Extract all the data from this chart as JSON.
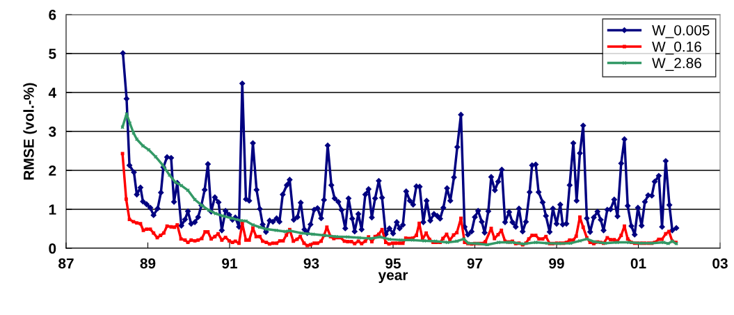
{
  "chart_data": {
    "type": "line",
    "xlabel": "year",
    "ylabel": "RMSE (vol.-%)",
    "xlim": [
      1987,
      2003
    ],
    "xticks": [
      {
        "value": 1987,
        "label": "87"
      },
      {
        "value": 1989,
        "label": "89"
      },
      {
        "value": 1991,
        "label": "91"
      },
      {
        "value": 1993,
        "label": "93"
      },
      {
        "value": 1995,
        "label": "95"
      },
      {
        "value": 1997,
        "label": "97"
      },
      {
        "value": 1999,
        "label": "99"
      },
      {
        "value": 2001,
        "label": "01"
      },
      {
        "value": 2003,
        "label": "03"
      }
    ],
    "ylim": [
      0,
      6
    ],
    "yticks": [
      0,
      1,
      2,
      3,
      4,
      5,
      6
    ],
    "grid": "y",
    "legend": "top right",
    "series": [
      {
        "name": "W_0.005",
        "color": "#000080",
        "marker": "diamond",
        "x": [
          1988.39,
          1988.48,
          1988.55,
          1988.66,
          1988.73,
          1988.82,
          1988.88,
          1988.97,
          1989.06,
          1989.14,
          1989.24,
          1989.32,
          1989.38,
          1989.47,
          1989.57,
          1989.64,
          1989.72,
          1989.82,
          1989.91,
          1989.98,
          1990.06,
          1990.15,
          1990.23,
          1990.31,
          1990.39,
          1990.47,
          1990.55,
          1990.64,
          1990.73,
          1990.81,
          1990.9,
          1990.99,
          1991.07,
          1991.14,
          1991.23,
          1991.31,
          1991.4,
          1991.48,
          1991.57,
          1991.66,
          1991.74,
          1991.81,
          1991.89,
          1991.98,
          1992.06,
          1992.15,
          1992.22,
          1992.3,
          1992.4,
          1992.47,
          1992.57,
          1992.66,
          1992.74,
          1992.83,
          1992.9,
          1992.98,
          1993.07,
          1993.15,
          1993.24,
          1993.31,
          1993.4,
          1993.49,
          1993.57,
          1993.66,
          1993.74,
          1993.83,
          1993.91,
          1994.0,
          1994.06,
          1994.15,
          1994.23,
          1994.32,
          1994.4,
          1994.48,
          1994.56,
          1994.65,
          1994.73,
          1994.82,
          1994.91,
          1995.0,
          1995.09,
          1995.16,
          1995.24,
          1995.32,
          1995.41,
          1995.49,
          1995.57,
          1995.65,
          1995.74,
          1995.82,
          1995.91,
          1996.0,
          1996.08,
          1996.15,
          1996.23,
          1996.32,
          1996.4,
          1996.49,
          1996.57,
          1996.66,
          1996.75,
          1996.83,
          1996.92,
          1997.0,
          1997.08,
          1997.17,
          1997.24,
          1997.33,
          1997.4,
          1997.49,
          1997.57,
          1997.66,
          1997.74,
          1997.84,
          1997.92,
          1998.0,
          1998.08,
          1998.17,
          1998.25,
          1998.34,
          1998.4,
          1998.49,
          1998.56,
          1998.66,
          1998.74,
          1998.83,
          1998.91,
          1999.0,
          1999.09,
          1999.15,
          1999.24,
          1999.32,
          1999.41,
          1999.49,
          1999.57,
          1999.65,
          1999.74,
          1999.82,
          1999.91,
          2000.0,
          2000.08,
          2000.15,
          2000.24,
          2000.32,
          2000.41,
          2000.49,
          2000.58,
          2000.66,
          2000.74,
          2000.83,
          2000.91,
          2000.99,
          2001.08,
          2001.16,
          2001.24,
          2001.33,
          2001.4,
          2001.5,
          2001.58,
          2001.67,
          2001.76,
          2001.83,
          2001.93
        ],
        "values": [
          5.01,
          3.84,
          2.13,
          1.95,
          1.38,
          1.56,
          1.2,
          1.13,
          1.04,
          0.85,
          1.02,
          1.43,
          2.08,
          2.34,
          2.32,
          1.19,
          1.68,
          0.58,
          0.74,
          0.95,
          0.63,
          0.67,
          0.8,
          1.1,
          1.5,
          2.16,
          0.94,
          1.31,
          1.18,
          0.46,
          0.96,
          0.86,
          0.73,
          0.79,
          0.55,
          4.23,
          1.26,
          1.22,
          2.7,
          1.5,
          1.01,
          0.61,
          0.42,
          0.71,
          0.68,
          0.77,
          0.68,
          1.38,
          1.62,
          1.76,
          0.73,
          0.8,
          1.17,
          0.48,
          0.39,
          0.61,
          0.99,
          1.03,
          0.77,
          1.24,
          2.64,
          1.62,
          1.28,
          1.19,
          0.98,
          0.51,
          1.28,
          0.76,
          0.43,
          0.88,
          0.48,
          1.38,
          1.52,
          0.79,
          1.28,
          1.73,
          1.3,
          0.36,
          0.51,
          0.38,
          0.67,
          0.51,
          0.6,
          1.46,
          1.22,
          1.12,
          1.59,
          1.58,
          0.67,
          1.22,
          0.71,
          0.88,
          0.83,
          0.76,
          1.04,
          1.54,
          1.22,
          1.82,
          2.6,
          3.43,
          0.55,
          0.35,
          0.43,
          0.8,
          0.96,
          0.68,
          0.4,
          0.95,
          1.83,
          1.49,
          1.71,
          2.02,
          0.67,
          0.93,
          0.67,
          0.55,
          1.02,
          0.43,
          0.68,
          1.44,
          2.13,
          2.15,
          1.44,
          1.18,
          0.83,
          0.42,
          1.02,
          0.63,
          1.12,
          0.61,
          0.63,
          1.62,
          2.7,
          1.22,
          2.44,
          3.15,
          0.77,
          0.42,
          0.79,
          0.94,
          0.73,
          0.46,
          0.99,
          1.0,
          1.25,
          0.82,
          2.18,
          2.8,
          1.09,
          0.57,
          0.35,
          1.04,
          0.58,
          1.19,
          1.36,
          1.35,
          1.71,
          1.86,
          0.55,
          2.24,
          1.11,
          0.46,
          0.52
        ]
      },
      {
        "name": "W_0.16",
        "color": "#ff0000",
        "marker": "square",
        "x": [
          1988.38,
          1988.47,
          1988.55,
          1988.65,
          1988.73,
          1988.82,
          1988.89,
          1988.97,
          1989.06,
          1989.14,
          1989.23,
          1989.31,
          1989.39,
          1989.47,
          1989.57,
          1989.65,
          1989.72,
          1989.81,
          1989.91,
          1989.98,
          1990.06,
          1990.15,
          1990.23,
          1990.32,
          1990.4,
          1990.47,
          1990.55,
          1990.64,
          1990.72,
          1990.81,
          1990.9,
          1990.99,
          1991.07,
          1991.14,
          1991.23,
          1991.31,
          1991.4,
          1991.48,
          1991.57,
          1991.65,
          1991.74,
          1991.81,
          1991.9,
          1991.98,
          1992.06,
          1992.15,
          1992.23,
          1992.31,
          1992.39,
          1992.47,
          1992.56,
          1992.65,
          1992.73,
          1992.82,
          1992.9,
          1992.98,
          1993.07,
          1993.15,
          1993.24,
          1993.31,
          1993.38,
          1993.47,
          1993.55,
          1993.64,
          1993.72,
          1993.81,
          1993.89,
          1993.98,
          1994.06,
          1994.15,
          1994.23,
          1994.32,
          1994.4,
          1994.48,
          1994.56,
          1994.65,
          1994.73,
          1994.82,
          1994.9,
          1994.99,
          1995.07,
          1995.16,
          1995.24,
          1995.31,
          1995.4,
          1995.48,
          1995.57,
          1995.64,
          1995.72,
          1995.81,
          1995.89,
          1995.98,
          1996.06,
          1996.15,
          1996.22,
          1996.31,
          1996.39,
          1996.48,
          1996.56,
          1996.66,
          1996.75,
          1996.83,
          1996.92,
          1997.0,
          1997.09,
          1997.17,
          1997.26,
          1997.4,
          1997.48,
          1997.57,
          1997.65,
          1997.74,
          1997.84,
          1997.92,
          1998.0,
          1998.08,
          1998.17,
          1998.25,
          1998.32,
          1998.4,
          1998.49,
          1998.57,
          1998.66,
          1998.74,
          1998.83,
          1998.91,
          1999.0,
          1999.09,
          1999.17,
          1999.24,
          1999.32,
          1999.41,
          1999.48,
          1999.57,
          1999.65,
          1999.74,
          1999.82,
          1999.91,
          2000.0,
          2000.08,
          2000.15,
          2000.24,
          2000.32,
          2000.41,
          2000.49,
          2000.58,
          2000.66,
          2000.74,
          2000.83,
          2000.91,
          2000.99,
          2001.08,
          2001.16,
          2001.25,
          2001.33,
          2001.4,
          2001.5,
          2001.58,
          2001.67,
          2001.75,
          2001.83,
          2001.92
        ],
        "values": [
          2.43,
          1.26,
          0.74,
          0.68,
          0.65,
          0.63,
          0.46,
          0.49,
          0.49,
          0.39,
          0.27,
          0.33,
          0.39,
          0.57,
          0.55,
          0.54,
          0.6,
          0.24,
          0.21,
          0.15,
          0.21,
          0.19,
          0.21,
          0.25,
          0.42,
          0.42,
          0.24,
          0.3,
          0.37,
          0.21,
          0.28,
          0.19,
          0.15,
          0.18,
          0.13,
          0.64,
          0.21,
          0.21,
          0.52,
          0.3,
          0.3,
          0.18,
          0.15,
          0.11,
          0.13,
          0.13,
          0.19,
          0.19,
          0.34,
          0.48,
          0.18,
          0.23,
          0.3,
          0.13,
          0.07,
          0.09,
          0.13,
          0.13,
          0.18,
          0.33,
          0.54,
          0.3,
          0.25,
          0.27,
          0.27,
          0.18,
          0.17,
          0.17,
          0.12,
          0.18,
          0.12,
          0.18,
          0.29,
          0.17,
          0.3,
          0.36,
          0.48,
          0.15,
          0.11,
          0.13,
          0.13,
          0.13,
          0.13,
          0.26,
          0.25,
          0.26,
          0.33,
          0.64,
          0.23,
          0.39,
          0.23,
          0.15,
          0.15,
          0.15,
          0.25,
          0.36,
          0.21,
          0.34,
          0.4,
          0.77,
          0.15,
          0.12,
          0.11,
          0.12,
          0.12,
          0.12,
          0.17,
          0.51,
          0.25,
          0.35,
          0.46,
          0.18,
          0.16,
          0.18,
          0.12,
          0.13,
          0.09,
          0.13,
          0.24,
          0.33,
          0.33,
          0.24,
          0.24,
          0.3,
          0.12,
          0.12,
          0.13,
          0.13,
          0.13,
          0.15,
          0.21,
          0.21,
          0.31,
          0.8,
          0.54,
          0.27,
          0.15,
          0.12,
          0.16,
          0.15,
          0.13,
          0.27,
          0.22,
          0.22,
          0.18,
          0.33,
          0.57,
          0.24,
          0.15,
          0.13,
          0.13,
          0.13,
          0.13,
          0.13,
          0.13,
          0.15,
          0.23,
          0.23,
          0.37,
          0.43,
          0.18,
          0.15
        ]
      },
      {
        "name": "W_2.86",
        "color": "#339966",
        "marker": "cross",
        "x": [
          1988.38,
          1988.48,
          1988.56,
          1988.65,
          1988.73,
          1988.88,
          1989.02,
          1989.19,
          1989.36,
          1989.53,
          1989.67,
          1989.82,
          1989.98,
          1990.15,
          1990.32,
          1990.49,
          1990.66,
          1990.83,
          1991.06,
          1991.28,
          1991.4,
          1991.57,
          1991.74,
          1991.91,
          1992.14,
          1992.36,
          1992.47,
          1992.75,
          1993.04,
          1993.32,
          1993.61,
          1993.89,
          1994.17,
          1994.46,
          1994.68,
          1994.91,
          1995.19,
          1995.48,
          1995.76,
          1996.04,
          1996.33,
          1996.56,
          1996.73,
          1996.84,
          1997.07,
          1997.3,
          1997.58,
          1997.81,
          1997.92,
          1998.19,
          1998.49,
          1998.77,
          1999.06,
          1999.34,
          1999.57,
          1999.74,
          1999.91,
          2000.19,
          2000.48,
          2000.77,
          2001.05,
          2001.33,
          2001.62,
          2001.73,
          2001.83,
          2001.93
        ],
        "values": [
          3.11,
          3.45,
          3.21,
          2.96,
          2.8,
          2.63,
          2.53,
          2.35,
          2.14,
          1.88,
          1.7,
          1.61,
          1.49,
          1.25,
          1.1,
          0.98,
          0.89,
          0.83,
          0.77,
          0.71,
          0.7,
          0.6,
          0.54,
          0.49,
          0.46,
          0.43,
          0.45,
          0.39,
          0.36,
          0.33,
          0.3,
          0.29,
          0.27,
          0.25,
          0.29,
          0.23,
          0.21,
          0.21,
          0.19,
          0.18,
          0.15,
          0.18,
          0.24,
          0.13,
          0.12,
          0.09,
          0.15,
          0.15,
          0.15,
          0.11,
          0.15,
          0.13,
          0.12,
          0.13,
          0.19,
          0.24,
          0.17,
          0.13,
          0.15,
          0.15,
          0.13,
          0.13,
          0.15,
          0.12,
          0.18,
          0.12
        ]
      }
    ]
  }
}
